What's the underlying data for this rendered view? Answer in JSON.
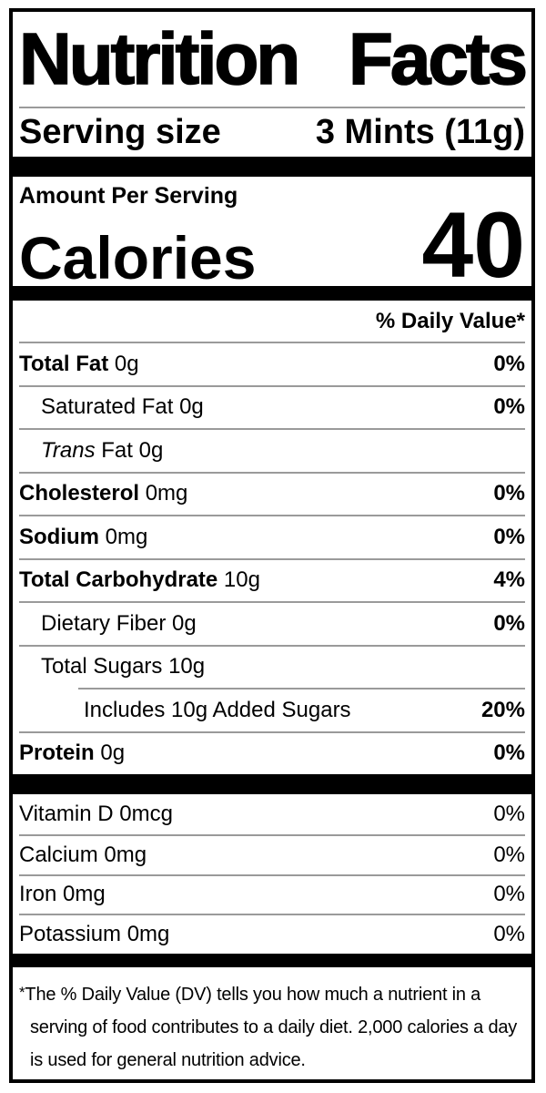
{
  "title": {
    "word1": "Nutrition",
    "word2": "Facts"
  },
  "serving": {
    "label": "Serving size",
    "value": "3 Mints (11g)"
  },
  "calories": {
    "heading": "Amount Per Serving",
    "label": "Calories",
    "value": "40"
  },
  "daily_value_header": "% Daily Value*",
  "nutrients": {
    "rows": [
      {
        "bold": "Total Fat",
        "text": " 0g",
        "dv": "0%",
        "indent": 0
      },
      {
        "text": "Saturated Fat 0g",
        "dv": "0%",
        "indent": 1
      },
      {
        "italic": "Trans",
        "text": " Fat 0g",
        "dv": "",
        "indent": 1
      },
      {
        "bold": "Cholesterol",
        "text": " 0mg",
        "dv": "0%",
        "indent": 0
      },
      {
        "bold": "Sodium",
        "text": " 0mg",
        "dv": "0%",
        "indent": 0
      },
      {
        "bold": "Total Carbohydrate",
        "text": " 10g",
        "dv": "4%",
        "indent": 0
      },
      {
        "text": "Dietary Fiber 0g",
        "dv": "0%",
        "indent": 1
      },
      {
        "text": "Total Sugars 10g",
        "dv": "",
        "indent": 1
      },
      {
        "text": "Includes 10g Added Sugars",
        "dv": "20%",
        "indent": 2
      },
      {
        "bold": "Protein",
        "text": " 0g",
        "dv": "0%",
        "indent": 0
      }
    ]
  },
  "vitamins": {
    "rows": [
      {
        "text": "Vitamin D 0mcg",
        "dv": "0%"
      },
      {
        "text": "Calcium 0mg",
        "dv": "0%"
      },
      {
        "text": "Iron 0mg",
        "dv": "0%"
      },
      {
        "text": "Potassium 0mg",
        "dv": "0%"
      }
    ]
  },
  "footnote": {
    "asterisk": "*",
    "text": "The % Daily Value (DV) tells you how much a nutrient in a serving of food contributes to a daily diet. 2,000 calories a day is used for general nutrition advice."
  },
  "colors": {
    "text": "#000000",
    "background": "#ffffff",
    "separator": "#9a9a9a",
    "bar": "#000000"
  }
}
